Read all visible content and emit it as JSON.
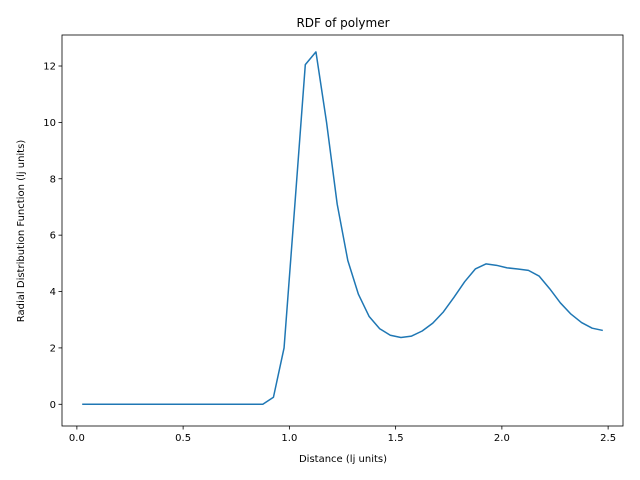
{
  "chart_data": {
    "type": "line",
    "title": "RDF of polymer",
    "xlabel": "Distance (lj units)",
    "ylabel": "Radial Distribution Function (lj units)",
    "xlim": [
      -0.07,
      2.57
    ],
    "ylim": [
      -0.77,
      13.1
    ],
    "xticks": [
      0.0,
      0.5,
      1.0,
      1.5,
      2.0,
      2.5
    ],
    "xtick_labels": [
      "0.0",
      "0.5",
      "1.0",
      "1.5",
      "2.0",
      "2.5"
    ],
    "yticks": [
      0,
      2,
      4,
      6,
      8,
      10,
      12
    ],
    "ytick_labels": [
      "0",
      "2",
      "4",
      "6",
      "8",
      "10",
      "12"
    ],
    "grid": false,
    "series": [
      {
        "color": "#1f77b4",
        "x": [
          0.025,
          0.075,
          0.125,
          0.175,
          0.225,
          0.275,
          0.325,
          0.375,
          0.425,
          0.475,
          0.525,
          0.575,
          0.625,
          0.675,
          0.725,
          0.775,
          0.825,
          0.875,
          0.925,
          0.975,
          1.025,
          1.075,
          1.125,
          1.175,
          1.225,
          1.275,
          1.325,
          1.375,
          1.425,
          1.475,
          1.525,
          1.575,
          1.625,
          1.675,
          1.725,
          1.775,
          1.825,
          1.875,
          1.925,
          1.975,
          2.025,
          2.075,
          2.125,
          2.175,
          2.225,
          2.275,
          2.325,
          2.375,
          2.425,
          2.475
        ],
        "y": [
          0,
          0,
          0,
          0,
          0,
          0,
          0,
          0,
          0,
          0,
          0,
          0,
          0,
          0,
          0,
          0,
          0,
          0,
          0.25,
          2.0,
          7.0,
          12.05,
          12.5,
          10.0,
          7.1,
          5.1,
          3.9,
          3.12,
          2.68,
          2.45,
          2.37,
          2.42,
          2.6,
          2.88,
          3.28,
          3.8,
          4.35,
          4.8,
          4.98,
          4.93,
          4.84,
          4.8,
          4.75,
          4.55,
          4.1,
          3.6,
          3.2,
          2.9,
          2.7,
          2.62
        ]
      }
    ]
  }
}
